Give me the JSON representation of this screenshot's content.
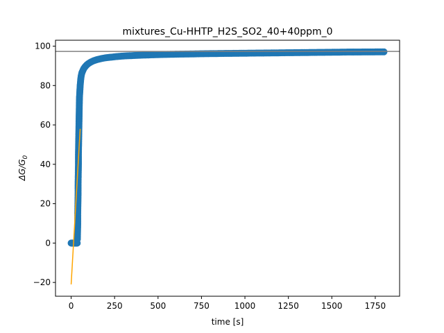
{
  "chart_data": {
    "type": "scatter",
    "title": "mixtures_Cu-HHTP_H2S_SO2_40+40ppm_0",
    "xlabel": "time [s]",
    "ylabel_main": "ΔG/G",
    "ylabel_sub": "0",
    "xlim": [
      -90,
      1890
    ],
    "ylim": [
      -27,
      103
    ],
    "xticks": [
      0,
      250,
      500,
      750,
      1000,
      1250,
      1500,
      1750
    ],
    "xtick_labels": [
      "0",
      "250",
      "500",
      "750",
      "1000",
      "1250",
      "1500",
      "1750"
    ],
    "yticks": [
      -20,
      0,
      20,
      40,
      60,
      80,
      100
    ],
    "ytick_labels": [
      "−20",
      "0",
      "20",
      "40",
      "60",
      "80",
      "100"
    ],
    "grid": false,
    "colors": {
      "scatter": "#1f77b4",
      "fit_line": "#ffa500",
      "reference_line": "#808080"
    },
    "series": [
      {
        "kind": "scatter",
        "baseline": {
          "x_start": 0,
          "x_end": 35,
          "y": 0
        },
        "rise_points": [
          [
            36,
            2
          ],
          [
            37,
            6
          ],
          [
            38,
            10
          ],
          [
            38,
            15
          ],
          [
            39,
            20
          ],
          [
            40,
            25
          ],
          [
            40,
            30
          ],
          [
            41,
            35
          ],
          [
            42,
            40
          ],
          [
            42,
            45
          ],
          [
            43,
            50
          ],
          [
            44,
            55
          ],
          [
            45,
            60
          ],
          [
            46,
            65
          ],
          [
            47,
            70
          ],
          [
            48,
            74
          ],
          [
            50,
            77
          ],
          [
            52,
            80
          ],
          [
            55,
            83
          ],
          [
            58,
            85
          ],
          [
            62,
            86.5
          ],
          [
            67,
            87.5
          ],
          [
            72,
            88.5
          ],
          [
            80,
            89.5
          ],
          [
            90,
            90.5
          ],
          [
            100,
            91.2
          ],
          [
            115,
            92
          ],
          [
            130,
            92.6
          ],
          [
            150,
            93.2
          ],
          [
            175,
            93.7
          ],
          [
            200,
            94.1
          ],
          [
            250,
            94.6
          ],
          [
            300,
            95
          ],
          [
            400,
            95.4
          ],
          [
            500,
            95.7
          ],
          [
            600,
            95.9
          ],
          [
            800,
            96.2
          ],
          [
            1000,
            96.4
          ],
          [
            1200,
            96.6
          ],
          [
            1400,
            96.8
          ],
          [
            1600,
            97
          ],
          [
            1800,
            97.1
          ]
        ]
      },
      {
        "kind": "line",
        "points": [
          [
            0,
            -21
          ],
          [
            52,
            58
          ]
        ]
      },
      {
        "kind": "hline",
        "y": 97.3
      }
    ]
  }
}
